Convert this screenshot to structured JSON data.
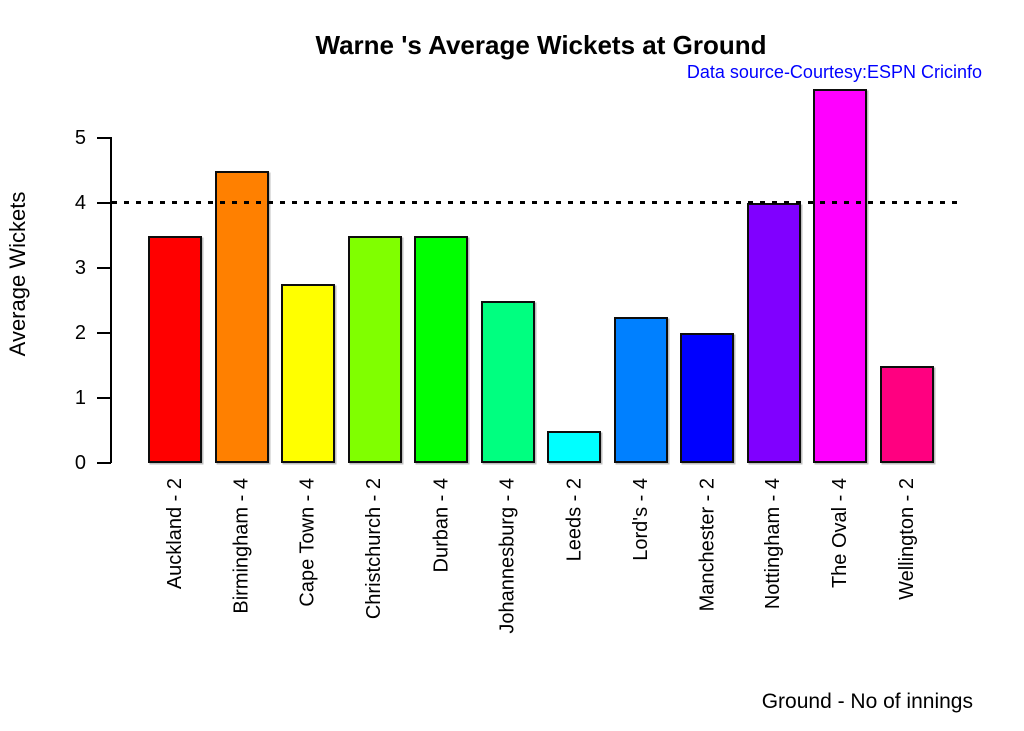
{
  "chart_data": {
    "type": "bar",
    "title": "Warne 's Average Wickets at Ground",
    "subtitle": "Data source-Courtesy:ESPN Cricinfo",
    "xlabel": "Ground - No of innings",
    "ylabel": "Average Wickets",
    "categories": [
      "Auckland - 2",
      "Birmingham - 4",
      "Cape Town - 4",
      "Christchurch - 2",
      "Durban - 4",
      "Johannesburg - 4",
      "Leeds - 2",
      "Lord's - 4",
      "Manchester - 2",
      "Nottingham - 4",
      "The Oval - 4",
      "Wellington - 2"
    ],
    "values": [
      3.5,
      4.5,
      2.75,
      3.5,
      3.5,
      2.5,
      0.5,
      2.25,
      2,
      4,
      5.75,
      1.5
    ],
    "bar_colors": [
      "#FF0000",
      "#FF8000",
      "#FFFF00",
      "#80FF00",
      "#00FF00",
      "#00FF80",
      "#00FFFF",
      "#0080FF",
      "#0000FF",
      "#8000FF",
      "#FF00FF",
      "#FF0080"
    ],
    "yticks": [
      0,
      1,
      2,
      3,
      4,
      5
    ],
    "ylim": [
      0,
      5
    ],
    "reference_line": {
      "value": 4,
      "style": "dotted",
      "color": "#000000"
    },
    "colors": {
      "title": "#000000",
      "subtitle": "#0000FF",
      "axis": "#000000",
      "bar_border": "#000000"
    },
    "legend": false,
    "grid": false
  }
}
